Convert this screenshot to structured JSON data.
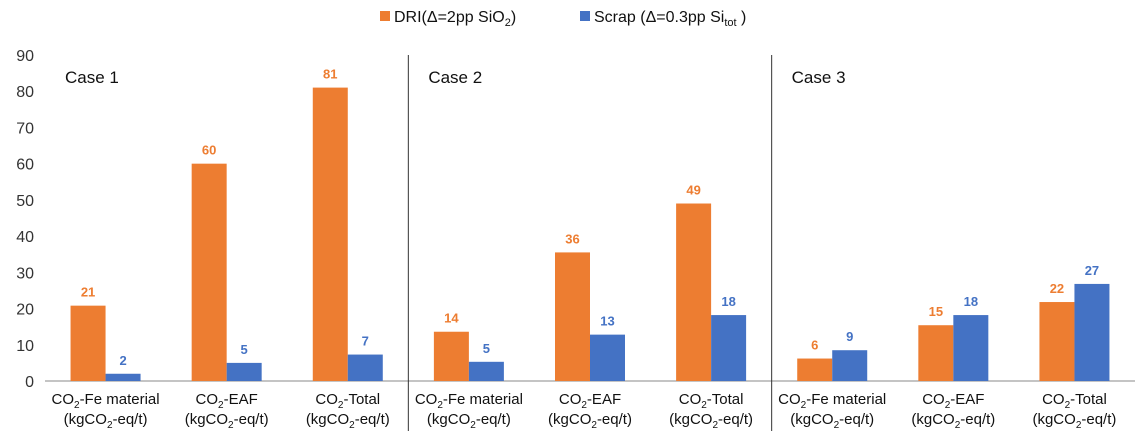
{
  "chart_data": {
    "type": "bar",
    "ylim": [
      0,
      90
    ],
    "yticks": [
      0,
      10,
      20,
      30,
      40,
      50,
      60,
      70,
      80,
      90
    ],
    "grid": false,
    "legend_position": "top-center",
    "cases": [
      "Case 1",
      "Case 2",
      "Case 3"
    ],
    "categories": [
      {
        "line1": "CO₂-Fe material",
        "line2": "(kgCO₂-eq/t)"
      },
      {
        "line1": "CO₂-EAF",
        "line2": "(kgCO₂-eq/t)"
      },
      {
        "line1": "CO₂-Total",
        "line2": "(kgCO₂-eq/t)"
      },
      {
        "line1": "CO₂-Fe material",
        "line2": "(kgCO₂-eq/t)"
      },
      {
        "line1": "CO₂-EAF",
        "line2": "(kgCO₂-eq/t)"
      },
      {
        "line1": "CO₂-Total",
        "line2": "(kgCO₂-eq/t)"
      },
      {
        "line1": "CO₂-Fe material",
        "line2": "(kgCO₂-eq/t)"
      },
      {
        "line1": "CO₂-EAF",
        "line2": "(kgCO₂-eq/t)"
      },
      {
        "line1": "CO₂-Total",
        "line2": "(kgCO₂-eq/t)"
      }
    ],
    "series": [
      {
        "name": "DRI(Δ=2pp SiO₂)",
        "color": "#ED7D31",
        "values": [
          20.8,
          60,
          81,
          13.6,
          35.5,
          49,
          6.2,
          15.4,
          21.8
        ],
        "labels": [
          "21",
          "60",
          "81",
          "14",
          "36",
          "49",
          "6",
          "15",
          "22"
        ]
      },
      {
        "name": "Scrap (Δ=0.3pp  Si_tot )",
        "color": "#4472C4",
        "values": [
          2,
          5,
          7.3,
          5.3,
          12.8,
          18.2,
          8.5,
          18.2,
          26.8
        ],
        "labels": [
          "2",
          "5",
          "7",
          "5",
          "13",
          "18",
          "9",
          "18",
          "27"
        ]
      }
    ]
  }
}
